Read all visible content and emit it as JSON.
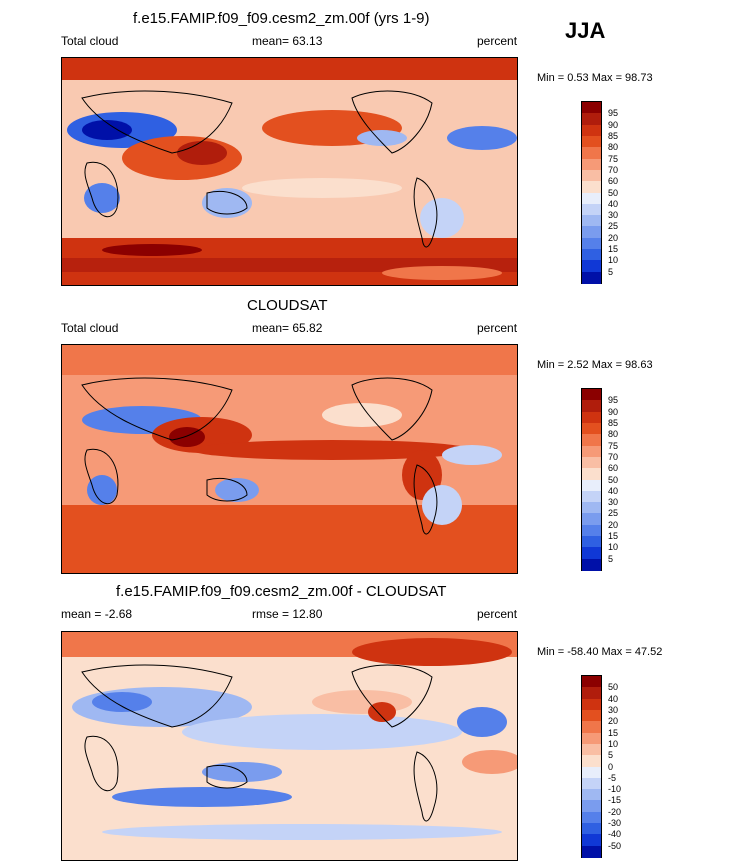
{
  "season_label": "JJA",
  "panels": [
    {
      "title": "f.e15.FAMIP.f09_f09.cesm2_zm.00f (yrs 1-9)",
      "left_label": "Total cloud",
      "stat_label": "mean=  63.13",
      "units": "percent",
      "minmax": "Min =   0.53 Max =  98.73",
      "colorbar_levels": [
        "95",
        "90",
        "85",
        "80",
        "75",
        "70",
        "60",
        "50",
        "40",
        "30",
        "25",
        "20",
        "15",
        "10",
        "5"
      ],
      "colorbar_colors": [
        "#8b0000",
        "#b01d0c",
        "#cf3310",
        "#e3501f",
        "#f0764a",
        "#f69a77",
        "#f9bea4",
        "#fbdfcd",
        "#e8eefb",
        "#c4d3f7",
        "#9fb8f2",
        "#7a9cee",
        "#5580ea",
        "#2f60e2",
        "#1038d6",
        "#0010a8"
      ]
    },
    {
      "title": "CLOUDSAT",
      "left_label": "Total cloud",
      "stat_label": "mean=   65.82",
      "units": "percent",
      "minmax": "Min =   2.52 Max =  98.63",
      "colorbar_levels": [
        "95",
        "90",
        "85",
        "80",
        "75",
        "70",
        "60",
        "50",
        "40",
        "30",
        "25",
        "20",
        "15",
        "10",
        "5"
      ],
      "colorbar_colors": [
        "#8b0000",
        "#b01d0c",
        "#cf3310",
        "#e3501f",
        "#f0764a",
        "#f69a77",
        "#f9bea4",
        "#fbdfcd",
        "#e8eefb",
        "#c4d3f7",
        "#9fb8f2",
        "#7a9cee",
        "#5580ea",
        "#2f60e2",
        "#1038d6",
        "#0010a8"
      ]
    },
    {
      "title": "f.e15.FAMIP.f09_f09.cesm2_zm.00f - CLOUDSAT",
      "left_label": "mean =  -2.68",
      "stat_label": "rmse =  12.80",
      "units": "percent",
      "minmax": "Min = -58.40 Max =  47.52",
      "colorbar_levels": [
        "50",
        "40",
        "30",
        "20",
        "15",
        "10",
        "5",
        "0",
        "-5",
        "-10",
        "-15",
        "-20",
        "-30",
        "-40",
        "-50"
      ],
      "colorbar_colors": [
        "#8b0000",
        "#b01d0c",
        "#cf3310",
        "#e3501f",
        "#f0764a",
        "#f69a77",
        "#f9bea4",
        "#fbdfcd",
        "#e8eefb",
        "#c4d3f7",
        "#9fb8f2",
        "#7a9cee",
        "#5580ea",
        "#2f60e2",
        "#1038d6",
        "#0010a8"
      ]
    }
  ],
  "chart_data": {
    "type": "heatmap",
    "season": "JJA",
    "panels": [
      {
        "title": "f.e15.FAMIP.f09_f09.cesm2_zm.00f (yrs 1-9)",
        "variable": "Total cloud",
        "units": "percent",
        "mean": 63.13,
        "min": 0.53,
        "max": 98.73,
        "levels": [
          5,
          10,
          15,
          20,
          25,
          30,
          40,
          50,
          60,
          70,
          75,
          80,
          85,
          90,
          95
        ]
      },
      {
        "title": "CLOUDSAT",
        "variable": "Total cloud",
        "units": "percent",
        "mean": 65.82,
        "min": 2.52,
        "max": 98.63,
        "levels": [
          5,
          10,
          15,
          20,
          25,
          30,
          40,
          50,
          60,
          70,
          75,
          80,
          85,
          90,
          95
        ]
      },
      {
        "title": "f.e15.FAMIP.f09_f09.cesm2_zm.00f - CLOUDSAT",
        "units": "percent",
        "mean": -2.68,
        "rmse": 12.8,
        "min": -58.4,
        "max": 47.52,
        "levels": [
          -50,
          -40,
          -30,
          -20,
          -15,
          -10,
          -5,
          0,
          5,
          10,
          15,
          20,
          30,
          40,
          50
        ]
      }
    ]
  }
}
